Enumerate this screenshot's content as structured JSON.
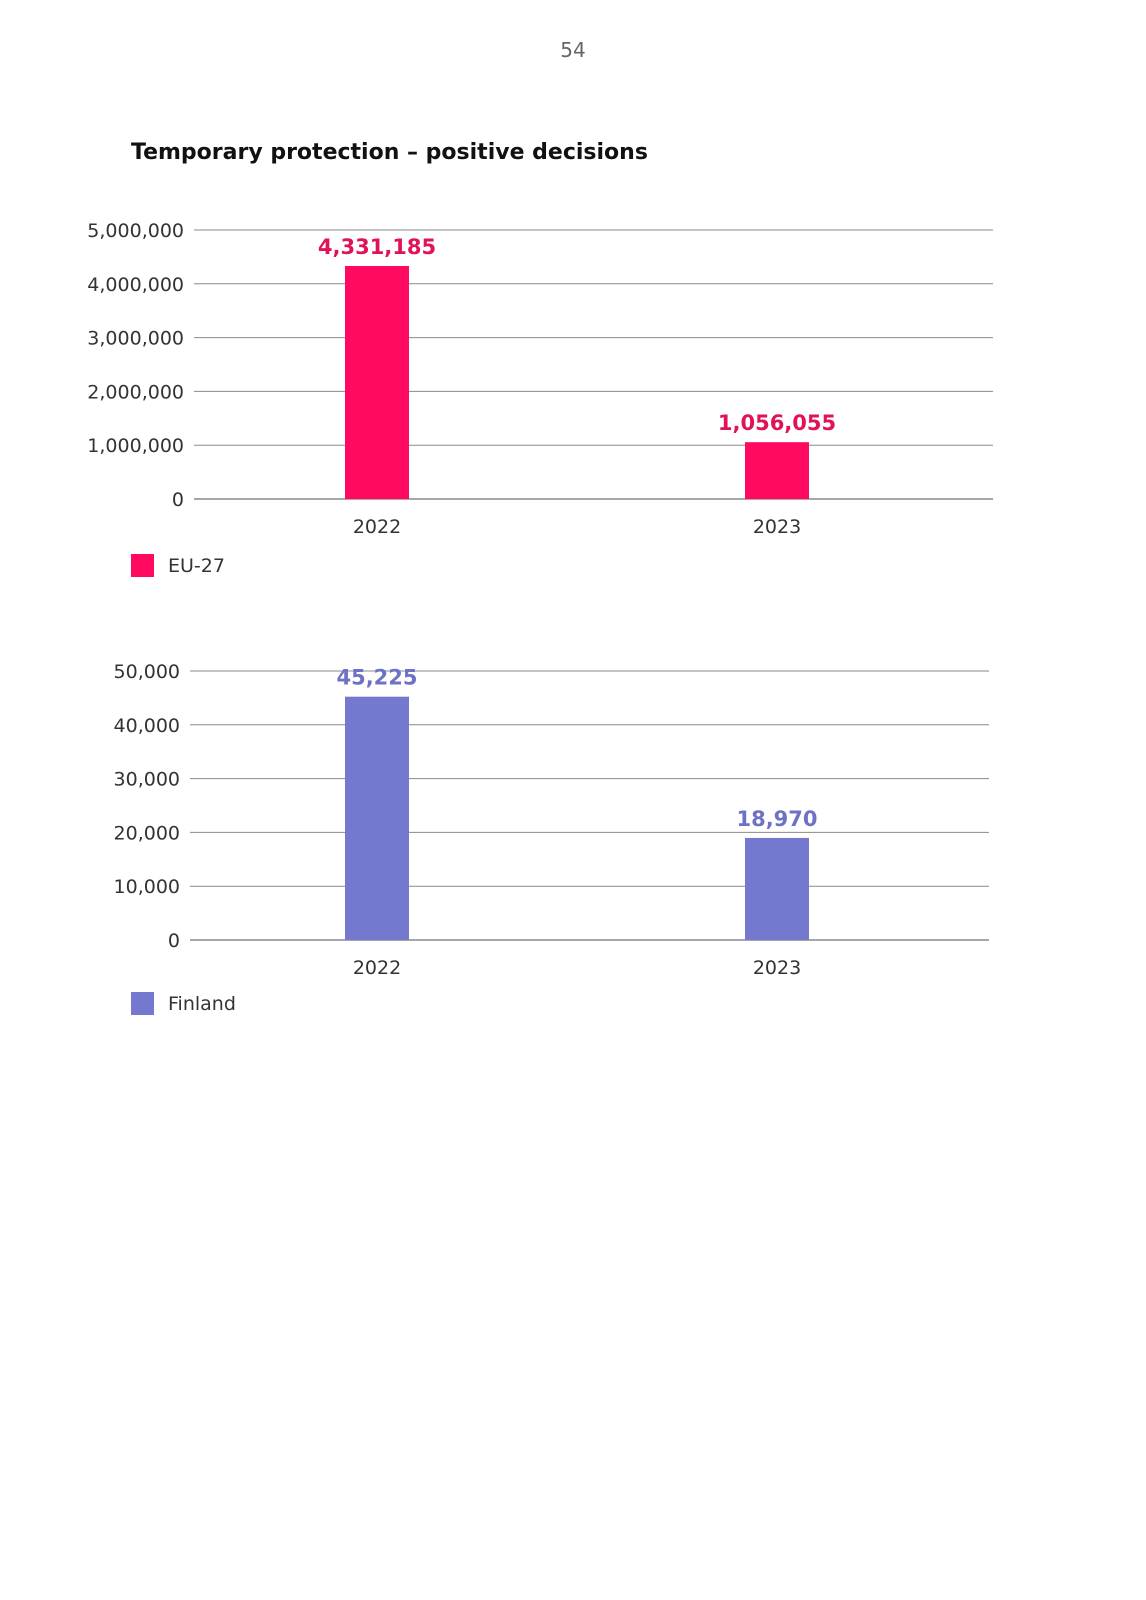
{
  "page": {
    "number": "54",
    "title": "Temporary protection – positive decisions"
  },
  "colors": {
    "eu": "#ff0a60",
    "eu_label": "#e0125a",
    "finland": "#7479cf",
    "finland_label": "#6d72c5",
    "grid": "#8a8a8a"
  },
  "chart_data": [
    {
      "type": "bar",
      "categories": [
        "2022",
        "2023"
      ],
      "series": [
        {
          "name": "EU-27",
          "values": [
            4331185,
            1056055
          ]
        }
      ],
      "data_labels": [
        "4,331,185",
        "1,056,055"
      ],
      "ylim": [
        0,
        5000000
      ],
      "yticks": [
        0,
        1000000,
        2000000,
        3000000,
        4000000,
        5000000
      ],
      "ytick_labels": [
        "0",
        "1,000,000",
        "2,000,000",
        "3,000,000",
        "4,000,000",
        "5,000,000"
      ],
      "grid": true,
      "legend": "bottom-left"
    },
    {
      "type": "bar",
      "categories": [
        "2022",
        "2023"
      ],
      "series": [
        {
          "name": "Finland",
          "values": [
            45225,
            18970
          ]
        }
      ],
      "data_labels": [
        "45,225",
        "18,970"
      ],
      "ylim": [
        0,
        50000
      ],
      "yticks": [
        0,
        10000,
        20000,
        30000,
        40000,
        50000
      ],
      "ytick_labels": [
        "0",
        "10,000",
        "20,000",
        "30,000",
        "40,000",
        "50,000"
      ],
      "grid": true,
      "legend": "bottom-left"
    }
  ]
}
